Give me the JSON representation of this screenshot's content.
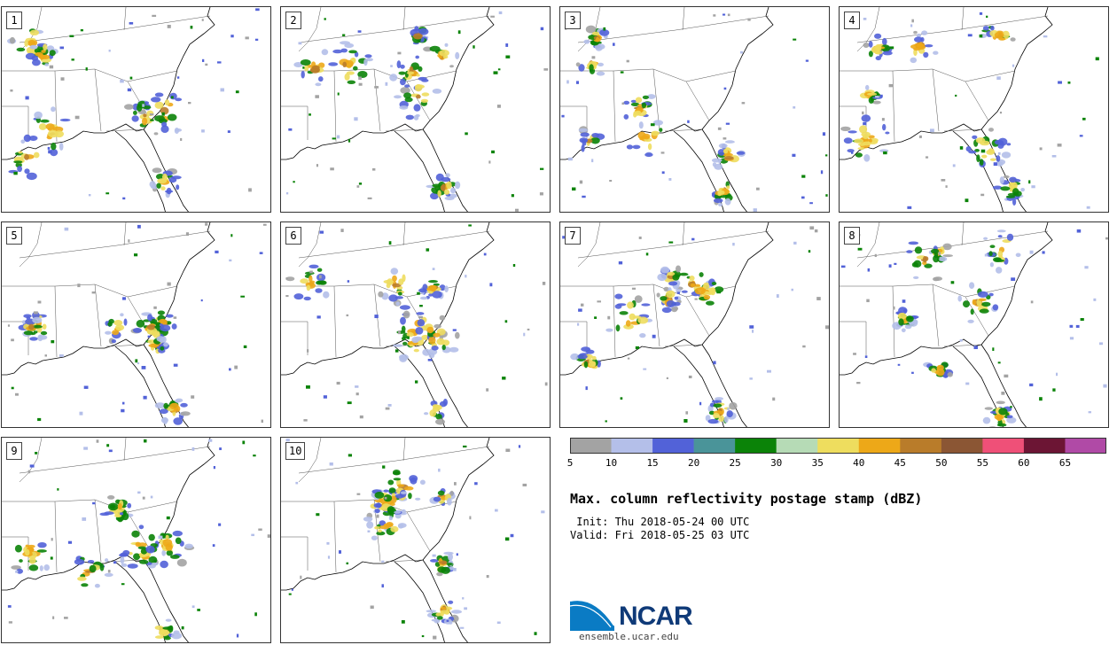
{
  "panels": [
    {
      "label": "1",
      "seed": 11
    },
    {
      "label": "2",
      "seed": 23
    },
    {
      "label": "3",
      "seed": 37
    },
    {
      "label": "4",
      "seed": 41
    },
    {
      "label": "5",
      "seed": 53
    },
    {
      "label": "6",
      "seed": 67
    },
    {
      "label": "7",
      "seed": 71
    },
    {
      "label": "8",
      "seed": 83
    },
    {
      "label": "9",
      "seed": 97
    },
    {
      "label": "10",
      "seed": 109
    }
  ],
  "colorbar": {
    "colors": [
      "#a3a3a3",
      "#b4bfe9",
      "#5262d8",
      "#4a9499",
      "#0b8308",
      "#b6dbb6",
      "#eedd5e",
      "#eda818",
      "#b97c2a",
      "#8b5634",
      "#ef5078",
      "#6c1534",
      "#b04aa6"
    ],
    "ticks": [
      "5",
      "10",
      "15",
      "20",
      "25",
      "30",
      "35",
      "40",
      "45",
      "50",
      "55",
      "60",
      "65"
    ]
  },
  "title": "Max. column reflectivity postage stamp (dBZ)",
  "init": " Init: Thu 2018-05-24 00 UTC",
  "valid": "Valid: Fri 2018-05-25 03 UTC",
  "logo": {
    "name": "NCAR",
    "url": "ensemble.ucar.edu"
  }
}
